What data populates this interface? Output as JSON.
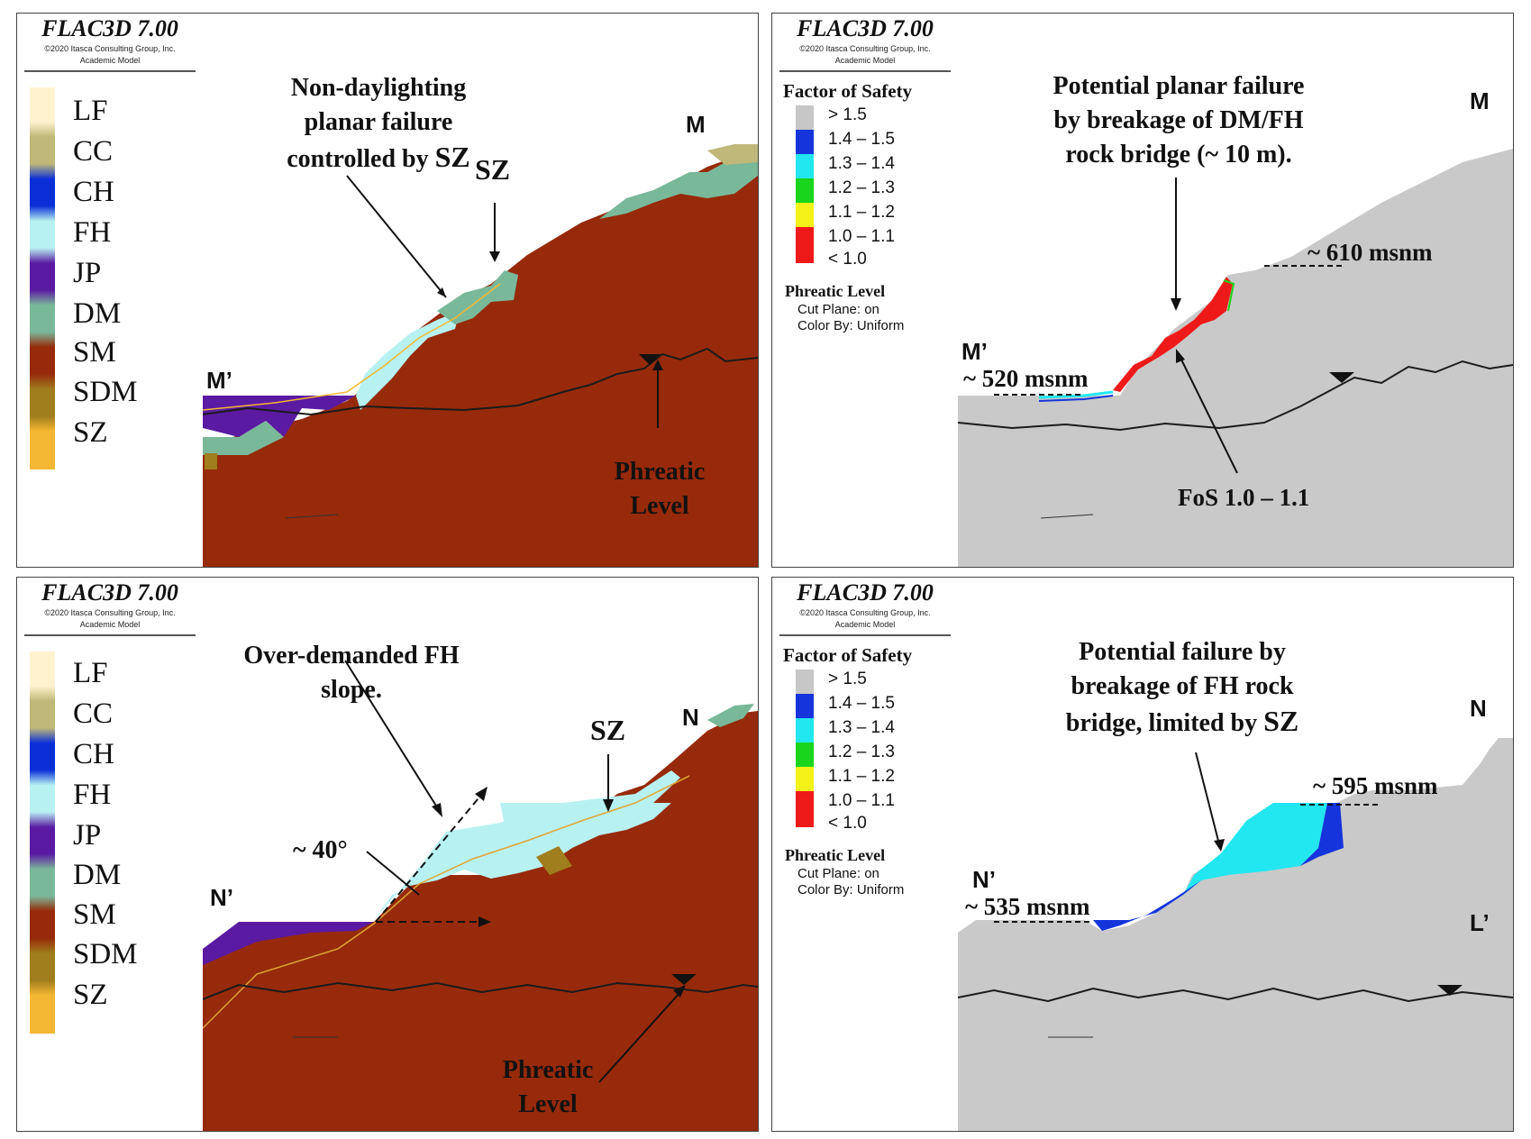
{
  "brand": {
    "title": "FLAC3D 7.00",
    "copyright": "©2020 Itasca Consulting Group, Inc.",
    "model": "Academic Model"
  },
  "legend": {
    "items": [
      {
        "code": "LF",
        "color": "#fff3cf"
      },
      {
        "code": "CC",
        "color": "#bfb879"
      },
      {
        "code": "CH",
        "color": "#0a2fd8"
      },
      {
        "code": "FH",
        "color": "#b8f1f2"
      },
      {
        "code": "JP",
        "color": "#5b1aa2"
      },
      {
        "code": "DM",
        "color": "#7ab89a"
      },
      {
        "code": "SM",
        "color": "#962a0a"
      },
      {
        "code": "SDM",
        "color": "#a07d1d"
      },
      {
        "code": "SZ",
        "color": "#f4b733"
      }
    ]
  },
  "fos_legend": {
    "title": "Factor of Safety",
    "items": [
      {
        "label": "> 1.5",
        "color": "#c7c7c7"
      },
      {
        "label": "1.4 – 1.5",
        "color": "#1534dc"
      },
      {
        "label": "1.3 – 1.4",
        "color": "#22e7f0"
      },
      {
        "label": "1.2 – 1.3",
        "color": "#19d51c"
      },
      {
        "label": "1.1 – 1.2",
        "color": "#f5f21a"
      },
      {
        "label": "1.0 – 1.1",
        "color": "#ee1a1a"
      },
      {
        "label": "< 1.0",
        "color": "#ee1a1a"
      }
    ],
    "phreatic_title": "Phreatic Level",
    "phreatic_line1": "Cut Plane: on",
    "phreatic_line2": "Color By: Uniform"
  },
  "panel_tl": {
    "annotation": [
      "Non-daylighting",
      "planar failure",
      "controlled by "
    ],
    "annotation_sz": "SZ",
    "sz_label": "SZ",
    "marker_left": "M’",
    "marker_right": "M",
    "phreatic": [
      "Phreatic",
      "Level"
    ]
  },
  "panel_tr": {
    "annotation": [
      "Potential planar failure",
      "by breakage of DM/FH",
      "rock bridge (~ 10 m)."
    ],
    "marker_left": "M’",
    "marker_right": "M",
    "elev_left": "~ 520 msnm",
    "elev_right": "~ 610 msnm",
    "fos_note": "FoS 1.0 – 1.1"
  },
  "panel_bl": {
    "annotation": [
      "Over-demanded FH",
      "slope."
    ],
    "sz_label": "SZ",
    "angle": "~ 40°",
    "marker_left": "N’",
    "marker_right": "N",
    "phreatic": [
      "Phreatic",
      "Level"
    ]
  },
  "panel_br": {
    "annotation": [
      "Potential failure by",
      "breakage of FH rock",
      "bridge, limited by "
    ],
    "annotation_sz": "SZ",
    "marker_left": "N’",
    "marker_right": "N",
    "marker_extra": "L’",
    "elev_left": "~ 535 msnm",
    "elev_right": "~ 595 msnm"
  }
}
